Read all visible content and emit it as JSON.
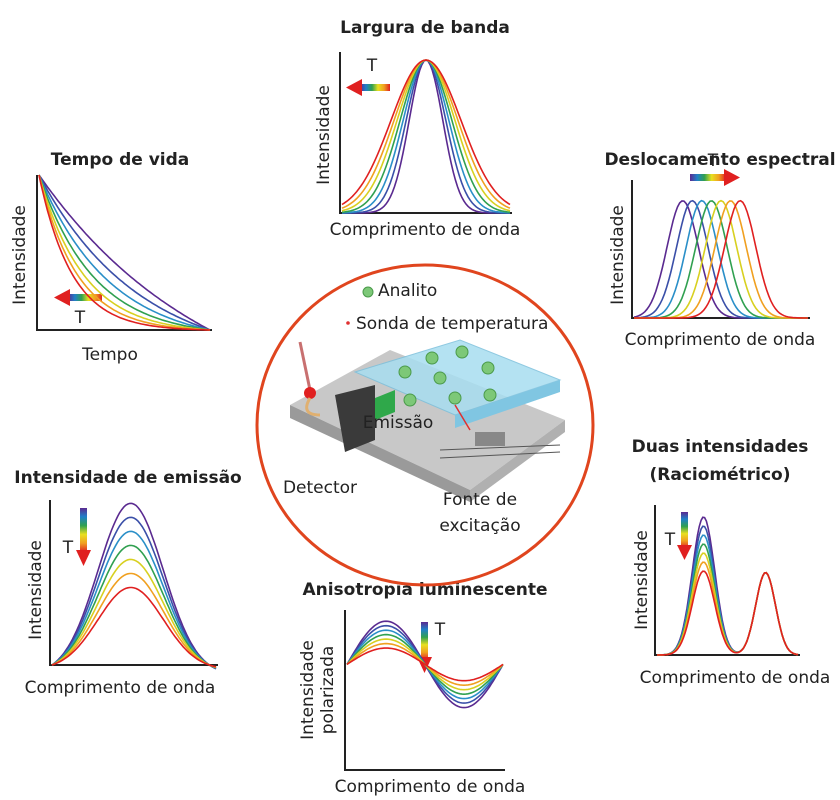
{
  "panels": [
    {
      "title": "Largura de banda",
      "y_label": "Intensidade",
      "x_label": "Comprimento de onda",
      "arrow_label": "T"
    },
    {
      "title": "Tempo de vida",
      "y_label": "Intensidade",
      "x_label": "Tempo",
      "arrow_label": "T"
    },
    {
      "title": "Deslocamento espectral",
      "y_label": "Intensidade",
      "x_label": "Comprimento de onda",
      "arrow_label": "T"
    },
    {
      "title": "Intensidade de emissão",
      "y_label": "Intensidade",
      "x_label": "Comprimento de onda",
      "arrow_label": "T"
    },
    {
      "title": "Anisotropia luminescente",
      "y_label": [
        "Intensidade",
        "polarizada"
      ],
      "x_label": "Comprimento de onda",
      "arrow_label": "T"
    },
    {
      "title": [
        "Duas intensidades",
        "(Raciométrico)"
      ],
      "y_label": "Intensidade",
      "x_label": "Comprimento de onda",
      "arrow_label": "T"
    }
  ],
  "center": {
    "legend": [
      "Analito",
      "Sonda de temperatura"
    ],
    "labels": {
      "emission": "Emissão",
      "detector": "Detector",
      "source": [
        "Fonte de",
        "excitação"
      ]
    }
  }
}
